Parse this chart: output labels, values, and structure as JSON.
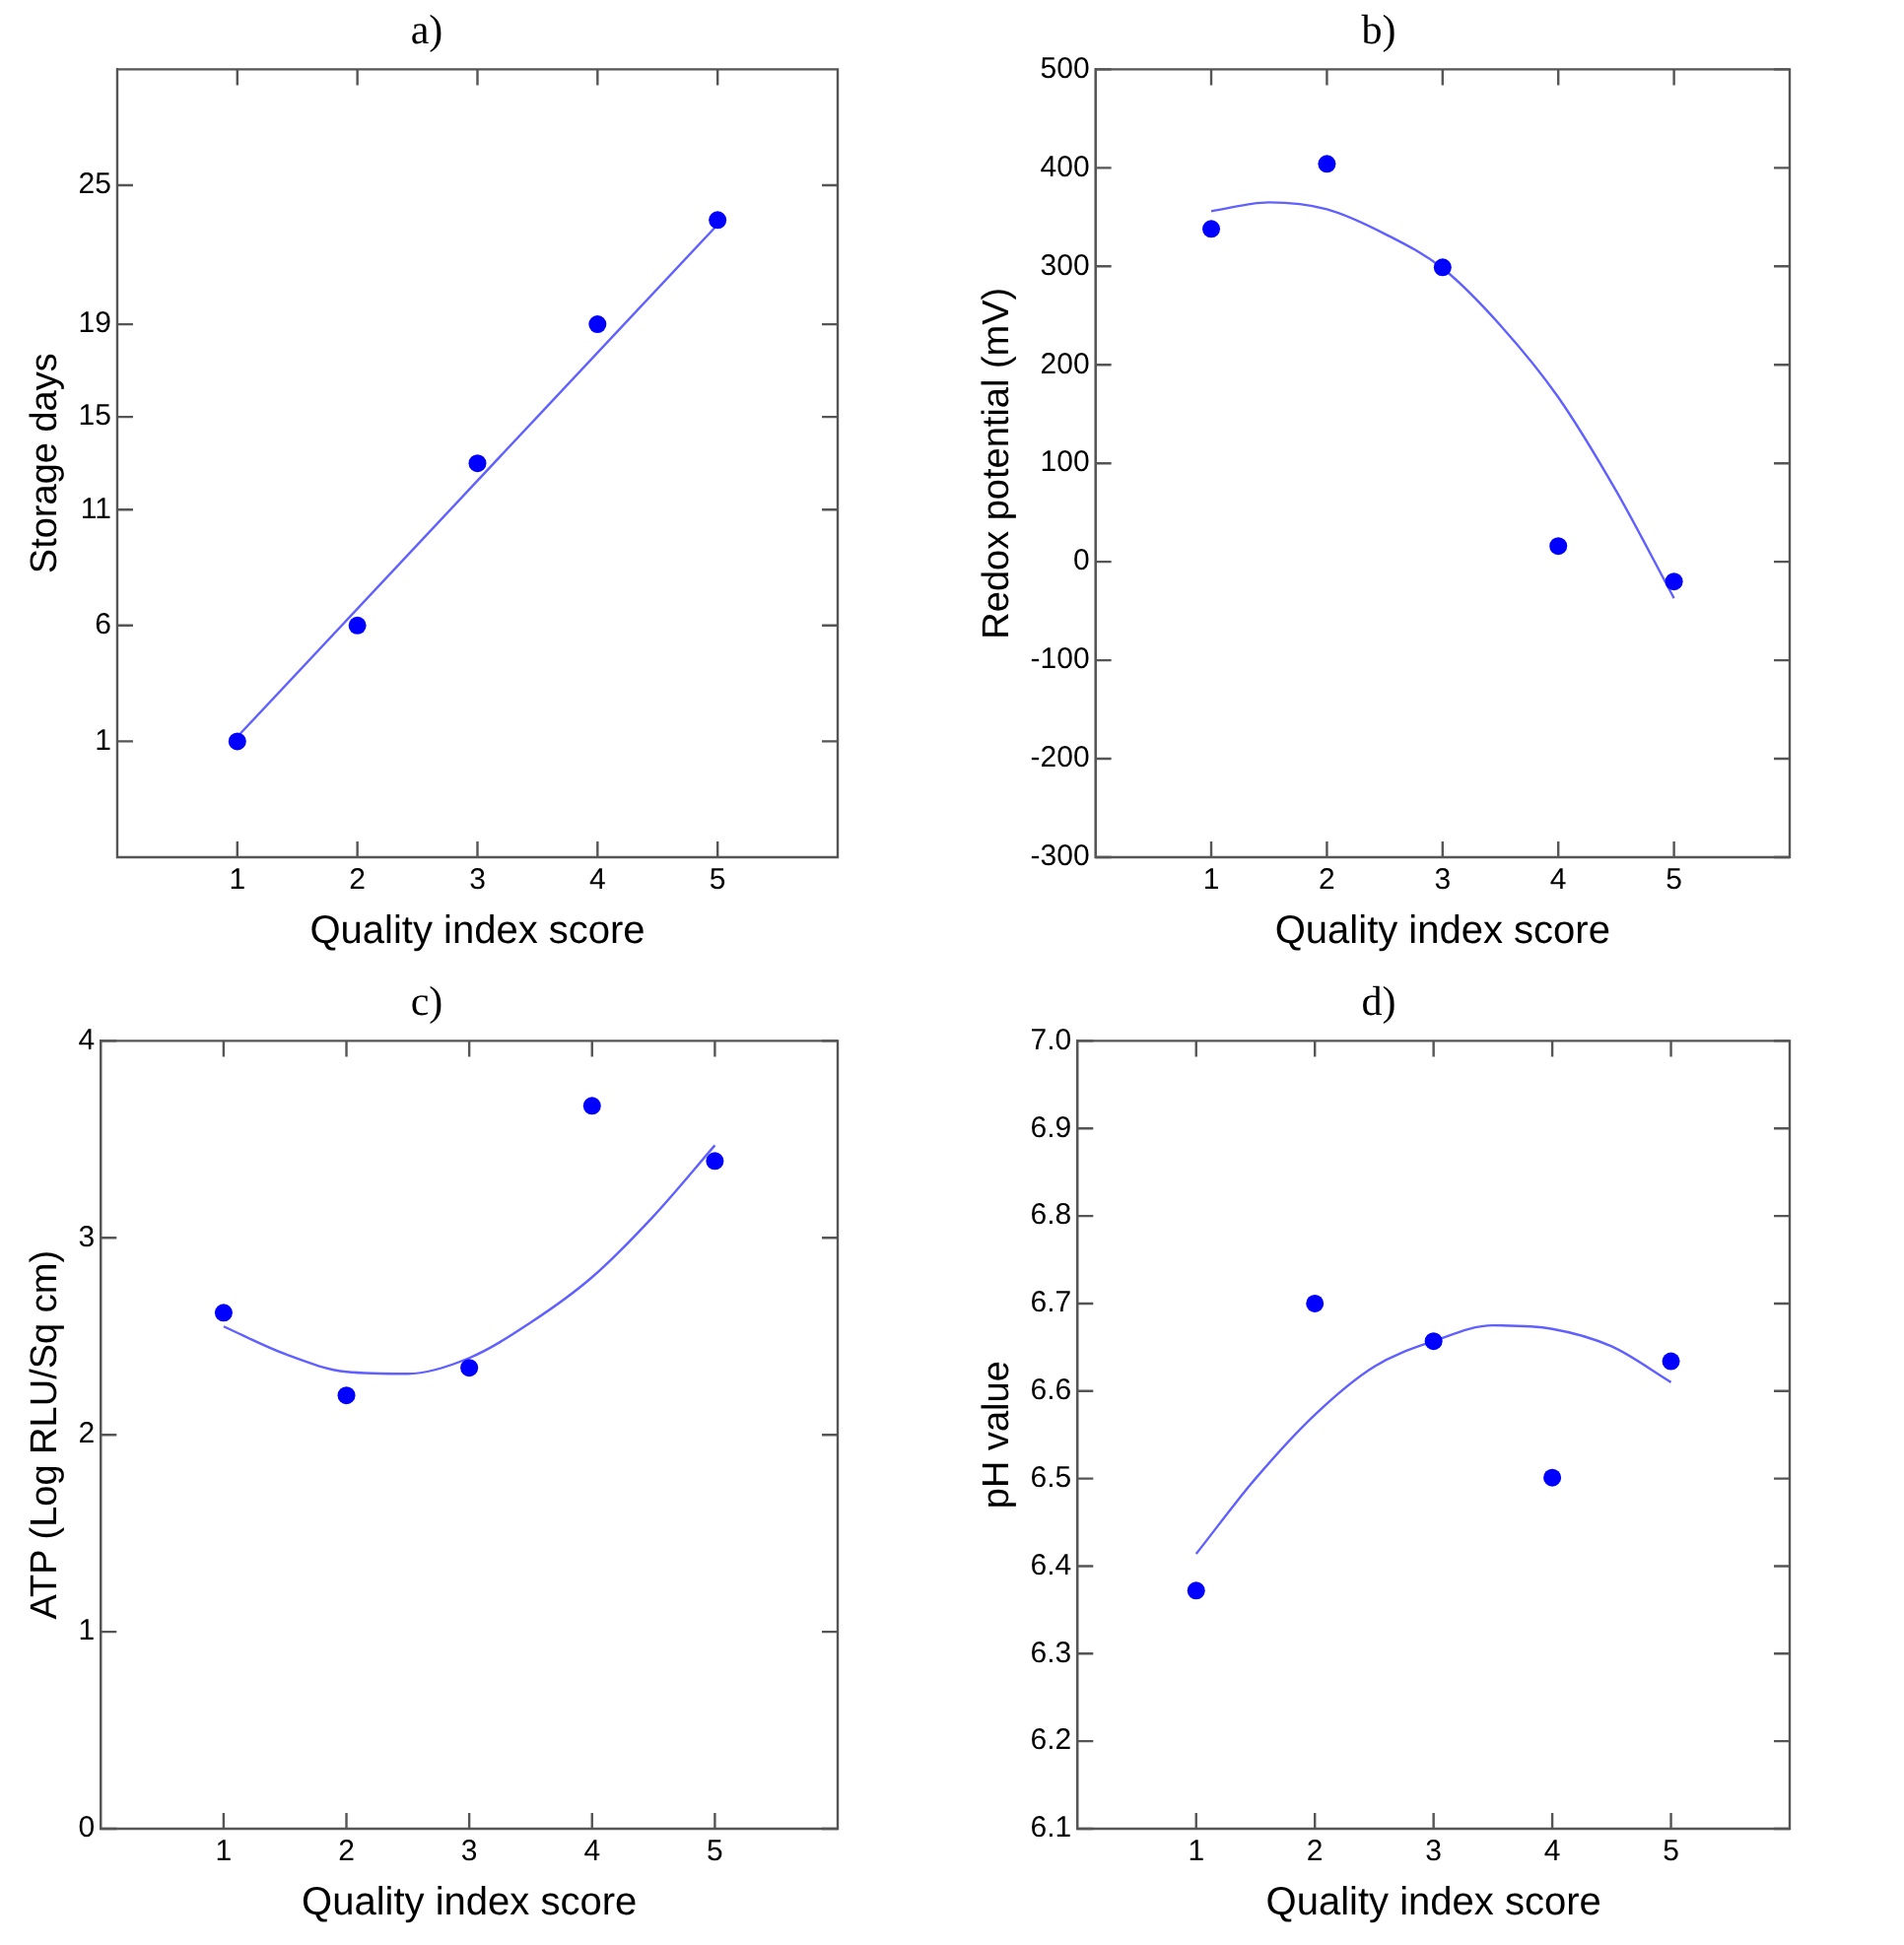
{
  "chart_data": [
    {
      "type": "scatter",
      "title": "a)",
      "xlabel": "Quality index score",
      "ylabel": "Storage days",
      "xlim": [
        0,
        6
      ],
      "xticks": [
        1,
        2,
        3,
        4,
        5
      ],
      "ylim": [
        -4,
        30
      ],
      "yticks": [
        1,
        6,
        11,
        15,
        19,
        25
      ],
      "grid": false,
      "legend": false,
      "marker": "circle",
      "line_style": "solid",
      "series": [
        {
          "type": "scatter",
          "color": "#0000ff",
          "x": [
            1,
            2,
            3,
            4,
            5
          ],
          "values": [
            1,
            6,
            13,
            19,
            23.5
          ]
        },
        {
          "type": "line",
          "color": "#6060ff",
          "marker": "none",
          "x": [
            1,
            5
          ],
          "values": [
            1.2,
            23.3
          ]
        }
      ]
    },
    {
      "type": "scatter",
      "title": "b)",
      "xlabel": "Quality index score",
      "ylabel": "Redox potential (mV)",
      "xlim": [
        0,
        6
      ],
      "xticks": [
        1,
        2,
        3,
        4,
        5
      ],
      "ylim": [
        -300,
        500
      ],
      "yticks": [
        -300,
        -200,
        -100,
        0,
        100,
        200,
        300,
        400,
        500
      ],
      "grid": false,
      "legend": false,
      "marker": "circle",
      "line_style": "solid",
      "series": [
        {
          "type": "scatter",
          "color": "#0000ff",
          "x": [
            1,
            2,
            3,
            4,
            5
          ],
          "values": [
            338,
            404,
            299,
            16,
            -20
          ]
        },
        {
          "type": "line",
          "color": "#6060ff",
          "marker": "none",
          "x": [
            1,
            1.5,
            2,
            2.5,
            3,
            3.5,
            4,
            4.5,
            5
          ],
          "values": [
            356,
            365,
            358,
            333,
            298,
            240,
            167,
            72,
            -37
          ]
        }
      ]
    },
    {
      "type": "scatter",
      "title": "c)",
      "xlabel": "Quality index score",
      "ylabel": "ATP (Log RLU/Sq cm)",
      "xlim": [
        0,
        6
      ],
      "xticks": [
        1,
        2,
        3,
        4,
        5
      ],
      "ylim": [
        0,
        4
      ],
      "yticks": [
        0,
        1,
        2,
        3,
        4
      ],
      "grid": false,
      "legend": false,
      "marker": "circle",
      "line_style": "solid",
      "series": [
        {
          "type": "scatter",
          "color": "#0000ff",
          "x": [
            1,
            2,
            3,
            4,
            5
          ],
          "values": [
            2.62,
            2.2,
            2.34,
            3.67,
            3.39
          ]
        },
        {
          "type": "line",
          "color": "#6060ff",
          "marker": "none",
          "x": [
            1,
            1.5,
            2,
            2.5,
            3,
            3.5,
            4,
            4.5,
            5
          ],
          "values": [
            2.55,
            2.41,
            2.32,
            2.31,
            2.39,
            2.57,
            2.8,
            3.11,
            3.47
          ]
        }
      ]
    },
    {
      "type": "scatter",
      "title": "d)",
      "xlabel": "Quality index score",
      "ylabel": "pH value",
      "xlim": [
        0,
        6
      ],
      "xticks": [
        1,
        2,
        3,
        4,
        5
      ],
      "ylim": [
        6.1,
        7
      ],
      "yticks": [
        {
          "value": 6.1,
          "label": "6.1"
        },
        {
          "value": 6.2,
          "label": "6.2"
        },
        {
          "value": 6.3,
          "label": "6.3"
        },
        {
          "value": 6.4,
          "label": "6.4"
        },
        {
          "value": 6.5,
          "label": "6.5"
        },
        {
          "value": 6.6,
          "label": "6.6"
        },
        {
          "value": 6.7,
          "label": "6.7"
        },
        {
          "value": 6.8,
          "label": "6.8"
        },
        {
          "value": 6.9,
          "label": "6.9"
        },
        {
          "value": 7,
          "label": "7.0"
        }
      ],
      "grid": false,
      "legend": false,
      "marker": "circle",
      "line_style": "solid",
      "series": [
        {
          "type": "scatter",
          "color": "#0000ff",
          "x": [
            1,
            2,
            3,
            4,
            5
          ],
          "values": [
            6.372,
            6.7,
            6.657,
            6.501,
            6.634
          ]
        },
        {
          "type": "line",
          "color": "#6060ff",
          "marker": "none",
          "x": [
            1,
            1.5,
            2,
            2.5,
            3,
            3.5,
            4,
            4.5,
            5
          ],
          "values": [
            6.414,
            6.5,
            6.573,
            6.628,
            6.657,
            6.675,
            6.671,
            6.651,
            6.61
          ]
        }
      ]
    }
  ]
}
